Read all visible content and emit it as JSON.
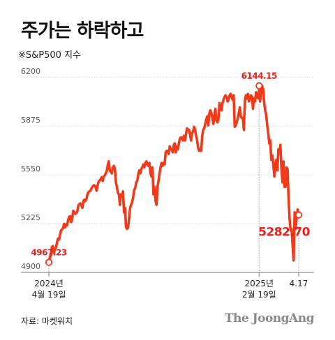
{
  "title": "주가는 하락하고",
  "subtitle": "※S&P500 지수",
  "source": "자료: 마켓워치",
  "brand": "The JoongAng",
  "colors": {
    "line": "#f03a1a",
    "label": "#e4231f",
    "axis": "#777777",
    "grid": "#d4d4d4",
    "tick_text": "#555555"
  },
  "chart_data": {
    "type": "line",
    "ylim": [
      4900,
      6250
    ],
    "yticks": [
      {
        "value": 6200,
        "label": "6200"
      },
      {
        "value": 5875,
        "label": "5875"
      },
      {
        "value": 5550,
        "label": "5550"
      },
      {
        "value": 5225,
        "label": "5225"
      },
      {
        "value": 4900,
        "label": "4900"
      }
    ],
    "xticks": [
      {
        "index": 0,
        "line1": "2024년",
        "line2": "4월 19일"
      },
      {
        "index": 207,
        "line1": "2025년",
        "line2": "2월 19일"
      },
      {
        "index": 246,
        "line1": "4.17",
        "line2": ""
      }
    ],
    "annotations": [
      {
        "index": 0,
        "value": 4967.23,
        "label": "4967.23",
        "position": "above",
        "size": 12
      },
      {
        "index": 207,
        "value": 6144.15,
        "label": "6144.15",
        "position": "above",
        "size": 12
      },
      {
        "index": 246,
        "value": 5282.7,
        "label": "5282.70",
        "position": "below-left",
        "size": 17
      }
    ],
    "series": [
      {
        "values": [
          4967,
          5002,
          5010,
          5070,
          5075,
          5030,
          5060,
          5064,
          5100,
          5125,
          5118,
          5152,
          5180,
          5187,
          5195,
          5223,
          5200,
          5220,
          5215,
          5250,
          5270,
          5275,
          5235,
          5260,
          5310,
          5304,
          5290,
          5295,
          5305,
          5345,
          5355,
          5360,
          5350,
          5330,
          5375,
          5385,
          5375,
          5390,
          5420,
          5435,
          5440,
          5445,
          5460,
          5470,
          5480,
          5480,
          5470,
          5445,
          5480,
          5505,
          5513,
          5520,
          5535,
          5510,
          5540,
          5545,
          5560,
          5575,
          5615,
          5640,
          5580,
          5570,
          5560,
          5600,
          5610,
          5590,
          5500,
          5470,
          5430,
          5420,
          5350,
          5420,
          5410,
          5440,
          5300,
          5330,
          5200,
          5190,
          5200,
          5260,
          5330,
          5350,
          5370,
          5400,
          5450,
          5460,
          5500,
          5510,
          5550,
          5580,
          5560,
          5590,
          5600,
          5620,
          5600,
          5630,
          5640,
          5620,
          5610,
          5630,
          5560,
          5540,
          5600,
          5420,
          5470,
          5380,
          5350,
          5470,
          5510,
          5560,
          5600,
          5630,
          5610,
          5630,
          5620,
          5700,
          5710,
          5710,
          5690,
          5740,
          5720,
          5720,
          5700,
          5750,
          5760,
          5700,
          5740,
          5720,
          5760,
          5790,
          5800,
          5800,
          5780,
          5810,
          5780,
          5820,
          5860,
          5850,
          5850,
          5820,
          5780,
          5830,
          5840,
          5870,
          5850,
          5810,
          5780,
          5730,
          5710,
          5720,
          5710,
          5810,
          5850,
          5860,
          5890,
          5920,
          5940,
          5880,
          5960,
          5980,
          5960,
          5930,
          5890,
          5950,
          5990,
          5910,
          5900,
          5920,
          6030,
          6000,
          5980,
          6030,
          6050,
          6070,
          6080,
          6070,
          6040,
          6050,
          6080,
          6090,
          6070,
          6050,
          6080,
          5870,
          5880,
          5900,
          5930,
          5960,
          6000,
          5940,
          5930,
          5930,
          5850,
          6040,
          6080,
          6060,
          6090,
          6040,
          6050,
          6080,
          6070,
          5990,
          6060,
          6040,
          6100,
          6070,
          6060,
          6120,
          6040,
          6110,
          6144,
          6120,
          6030,
          5980,
          5950,
          5880,
          5830,
          5760,
          5780,
          5650,
          5680,
          5620,
          5540,
          5610,
          5650,
          5580,
          5720,
          5700,
          5750,
          5590,
          5500,
          5640,
          5470,
          5470,
          5600,
          5590,
          5400,
          5260,
          5180,
          5190,
          5080,
          4980,
          5300,
          5190,
          5270,
          5320,
          5282.7
        ]
      }
    ]
  }
}
